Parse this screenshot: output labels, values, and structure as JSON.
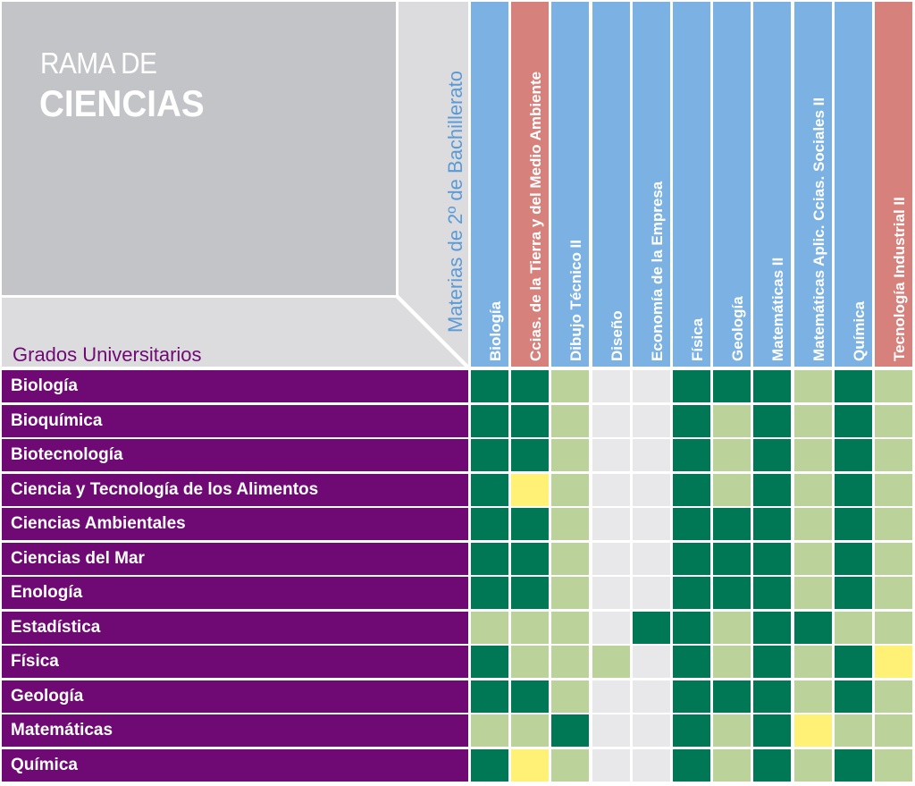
{
  "title": {
    "line1": "RAMA DE",
    "line2": "CIENCIAS"
  },
  "rows_axis_title": "Grados Universitarios",
  "cols_axis_title": "Materias de 2º de Bachillerato",
  "colors": {
    "purple": "#6f0a74",
    "header_blue": "#7cb2e3",
    "header_red": "#d7817c",
    "dark_green": "#007856",
    "light_green": "#bbd29b",
    "gray": "#e8e8ea",
    "yellow": "#fff176",
    "axis_blue_text": "#5a9ad6"
  },
  "chart_data": {
    "type": "heatmap",
    "title": "RAMA DE CIENCIAS",
    "xlabel": "Materias de 2º de Bachillerato",
    "ylabel": "Grados Universitarios",
    "columns": [
      {
        "label": "Biología",
        "header_color": "blue"
      },
      {
        "label": "Ccias. de la Tierra y del Medio Ambiente",
        "header_color": "red"
      },
      {
        "label": "Dibujo Técnico II",
        "header_color": "blue"
      },
      {
        "label": "Diseño",
        "header_color": "blue"
      },
      {
        "label": "Economía de la Empresa",
        "header_color": "blue"
      },
      {
        "label": "Física",
        "header_color": "blue"
      },
      {
        "label": "Geología",
        "header_color": "blue"
      },
      {
        "label": "Matemáticas II",
        "header_color": "blue"
      },
      {
        "label": "Matemáticas Aplic. Ccias. Sociales II",
        "header_color": "blue"
      },
      {
        "label": "Química",
        "header_color": "blue"
      },
      {
        "label": "Tecnología Industrial II",
        "header_color": "red"
      }
    ],
    "cell_categories": {
      "D": "dark_green",
      "L": "light_green",
      "G": "gray",
      "Y": "yellow"
    },
    "rows": [
      {
        "label": "Biología",
        "values": [
          "D",
          "D",
          "L",
          "G",
          "G",
          "D",
          "D",
          "D",
          "L",
          "D",
          "L"
        ]
      },
      {
        "label": "Bioquímica",
        "values": [
          "D",
          "D",
          "L",
          "G",
          "G",
          "D",
          "L",
          "D",
          "L",
          "D",
          "L"
        ]
      },
      {
        "label": "Biotecnología",
        "values": [
          "D",
          "D",
          "L",
          "G",
          "G",
          "D",
          "L",
          "D",
          "L",
          "D",
          "L"
        ]
      },
      {
        "label": "Ciencia y Tecnología de los Alimentos",
        "values": [
          "D",
          "Y",
          "L",
          "G",
          "G",
          "D",
          "L",
          "D",
          "L",
          "D",
          "L"
        ]
      },
      {
        "label": "Ciencias Ambientales",
        "values": [
          "D",
          "D",
          "L",
          "G",
          "G",
          "D",
          "D",
          "D",
          "L",
          "D",
          "L"
        ]
      },
      {
        "label": "Ciencias del Mar",
        "values": [
          "D",
          "D",
          "L",
          "G",
          "G",
          "D",
          "D",
          "D",
          "L",
          "D",
          "L"
        ]
      },
      {
        "label": "Enología",
        "values": [
          "D",
          "D",
          "L",
          "G",
          "G",
          "D",
          "D",
          "D",
          "L",
          "D",
          "L"
        ]
      },
      {
        "label": "Estadística",
        "values": [
          "L",
          "L",
          "L",
          "G",
          "D",
          "D",
          "L",
          "D",
          "D",
          "L",
          "L"
        ]
      },
      {
        "label": "Física",
        "values": [
          "D",
          "L",
          "L",
          "L",
          "G",
          "D",
          "L",
          "D",
          "L",
          "D",
          "Y"
        ]
      },
      {
        "label": "Geología",
        "values": [
          "D",
          "D",
          "L",
          "G",
          "G",
          "D",
          "D",
          "D",
          "L",
          "D",
          "L"
        ]
      },
      {
        "label": "Matemáticas",
        "values": [
          "L",
          "L",
          "D",
          "G",
          "G",
          "D",
          "L",
          "D",
          "Y",
          "L",
          "L"
        ]
      },
      {
        "label": "Química",
        "values": [
          "D",
          "Y",
          "L",
          "G",
          "G",
          "D",
          "L",
          "D",
          "L",
          "D",
          "L"
        ]
      }
    ]
  }
}
